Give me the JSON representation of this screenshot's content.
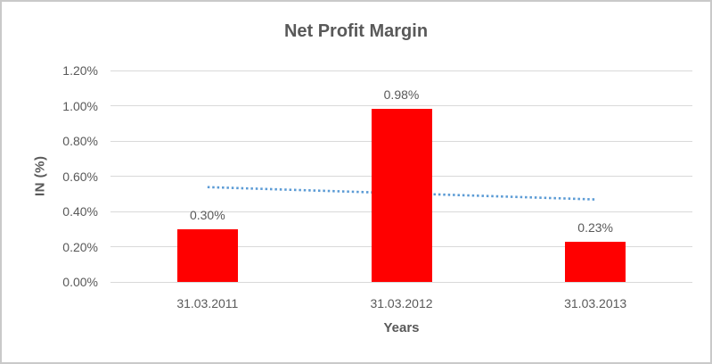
{
  "chart_data": {
    "type": "bar",
    "title": "Net Profit Margin",
    "xlabel": "Years",
    "ylabel": "IN (%)",
    "categories": [
      "31.03.2011",
      "31.03.2012",
      "31.03.2013"
    ],
    "values": [
      0.3,
      0.98,
      0.23
    ],
    "data_labels": [
      "0.30%",
      "0.98%",
      "0.23%"
    ],
    "y_ticks": [
      {
        "value": 0.0,
        "label": "0.00%"
      },
      {
        "value": 0.2,
        "label": "0.20%"
      },
      {
        "value": 0.4,
        "label": "0.40%"
      },
      {
        "value": 0.6,
        "label": "0.60%"
      },
      {
        "value": 0.8,
        "label": "0.80%"
      },
      {
        "value": 1.0,
        "label": "1.00%"
      },
      {
        "value": 1.2,
        "label": "1.20%"
      }
    ],
    "ylim": [
      0,
      1.2
    ],
    "grid": true,
    "legend": "none",
    "trendline": {
      "type": "linear",
      "style": "dotted",
      "color": "#5b9bd5",
      "start_value": 0.538,
      "end_value": 0.468
    },
    "colors": {
      "bar": "#ff0000",
      "gridline": "#d9d9d9",
      "text": "#595959",
      "frame_border": "#c9c9c9",
      "background": "#ffffff"
    }
  }
}
